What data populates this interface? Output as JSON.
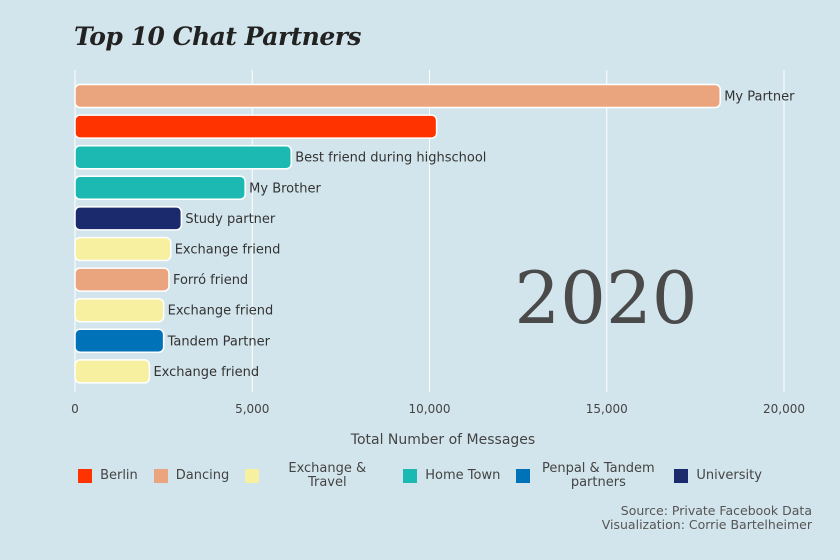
{
  "chart_data": {
    "type": "bar",
    "orientation": "horizontal",
    "title": "Top 10 Chat Partners",
    "year_label": "2020",
    "xlabel": "Total Number of Messages",
    "xlim": [
      0,
      20000
    ],
    "xticks": [
      0,
      5000,
      10000,
      15000,
      20000
    ],
    "xtick_labels": [
      "0",
      "5,000",
      "10,000",
      "15,000",
      "20,000"
    ],
    "grid": true,
    "bars": [
      {
        "label": "My Partner",
        "value": 18200,
        "group": "Dancing"
      },
      {
        "label": "",
        "value": 10200,
        "group": "Berlin"
      },
      {
        "label": "Best friend during highschool",
        "value": 6100,
        "group": "Home Town"
      },
      {
        "label": "My Brother",
        "value": 4800,
        "group": "Home Town"
      },
      {
        "label": "Study partner",
        "value": 3000,
        "group": "University"
      },
      {
        "label": "Exchange friend",
        "value": 2700,
        "group": "Exchange & Travel"
      },
      {
        "label": "Forró friend",
        "value": 2650,
        "group": "Dancing"
      },
      {
        "label": "Exchange friend",
        "value": 2500,
        "group": "Exchange & Travel"
      },
      {
        "label": "Tandem Partner",
        "value": 2500,
        "group": "Penpal & Tandem partners"
      },
      {
        "label": "Exchange friend",
        "value": 2100,
        "group": "Exchange & Travel"
      }
    ],
    "legend_position": "bottom",
    "legend": [
      {
        "name": "Berlin",
        "color": "#ff3300"
      },
      {
        "name": "Dancing",
        "color": "#eba57e"
      },
      {
        "name": "Exchange & Travel",
        "color": "#f7f0a1"
      },
      {
        "name": "Home Town",
        "color": "#1cb8b2"
      },
      {
        "name": "Penpal & Tandem partners",
        "color": "#0072b8"
      },
      {
        "name": "University",
        "color": "#1a2a6c"
      }
    ]
  },
  "caption": {
    "source": "Source: Private Facebook Data",
    "visualization": "Visualization: Corrie Bartelheimer"
  }
}
